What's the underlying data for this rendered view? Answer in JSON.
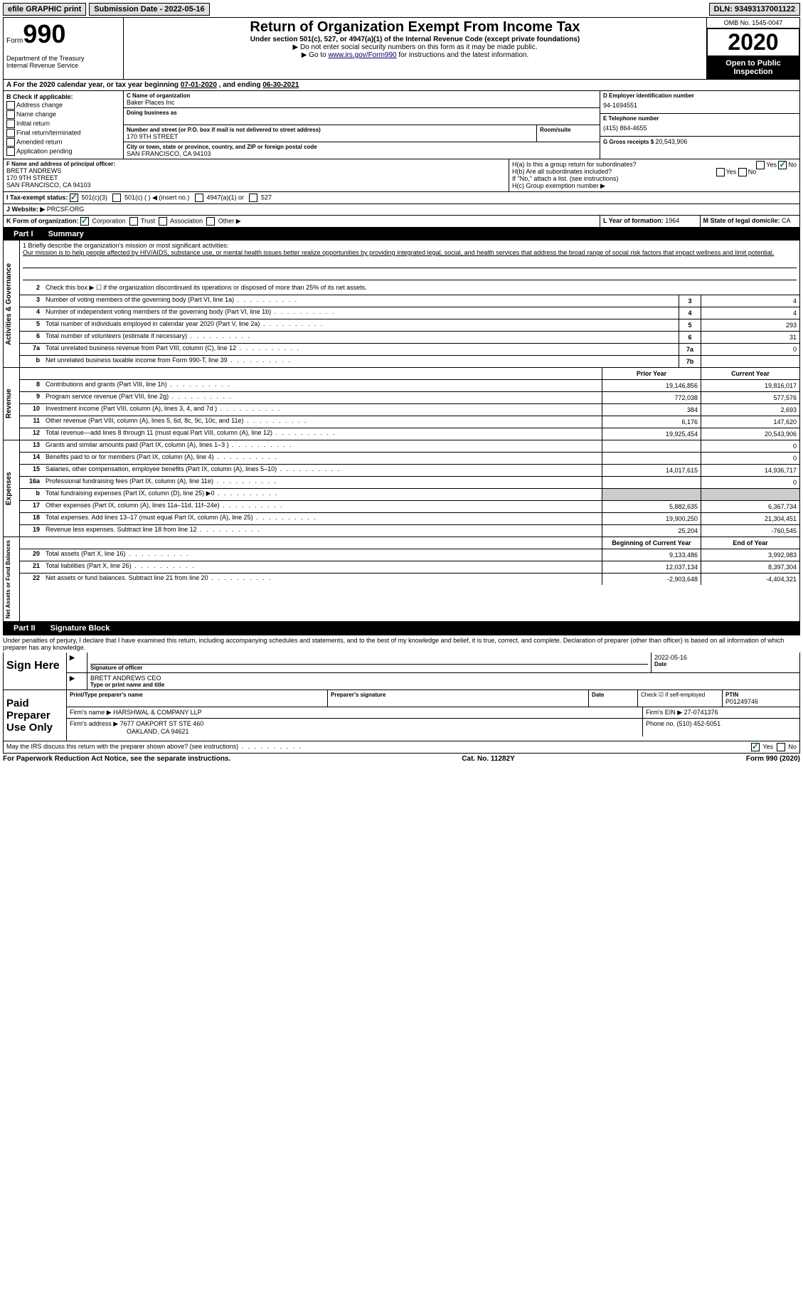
{
  "topbar": {
    "efile": "efile GRAPHIC print",
    "submission_label": "Submission Date - ",
    "submission_date": "2022-05-16",
    "dln_label": "DLN: ",
    "dln": "93493137001122"
  },
  "header": {
    "form_word": "Form",
    "form_number": "990",
    "dept": "Department of the Treasury\nInternal Revenue Service",
    "title": "Return of Organization Exempt From Income Tax",
    "subtitle": "Under section 501(c), 527, or 4947(a)(1) of the Internal Revenue Code (except private foundations)",
    "note1": "▶ Do not enter social security numbers on this form as it may be made public.",
    "note2_pre": "▶ Go to ",
    "note2_link": "www.irs.gov/Form990",
    "note2_post": " for instructions and the latest information.",
    "omb": "OMB No. 1545-0047",
    "year": "2020",
    "inspect": "Open to Public Inspection"
  },
  "section_a": {
    "text_pre": "A For the 2020 calendar year, or tax year beginning ",
    "begin": "07-01-2020",
    "mid": " , and ending ",
    "end": "06-30-2021"
  },
  "block_b": {
    "label": "B Check if applicable:",
    "items": [
      "Address change",
      "Name change",
      "Initial return",
      "Final return/terminated",
      "Amended return",
      "Application pending"
    ]
  },
  "block_c": {
    "name_label": "C Name of organization",
    "name": "Baker Places Inc",
    "dba_label": "Doing business as",
    "addr_label": "Number and street (or P.O. box if mail is not delivered to street address)",
    "room_label": "Room/suite",
    "addr": "170 9TH STREET",
    "city_label": "City or town, state or province, country, and ZIP or foreign postal code",
    "city": "SAN FRANCISCO, CA  94103"
  },
  "block_d": {
    "ein_label": "D Employer identification number",
    "ein": "94-1694551",
    "tel_label": "E Telephone number",
    "tel": "(415) 864-4655",
    "gross_label": "G Gross receipts $ ",
    "gross": "20,543,906"
  },
  "block_f": {
    "label": "F Name and address of principal officer:",
    "name": "BRETT ANDREWS",
    "addr1": "170 9TH STREET",
    "addr2": "SAN FRANCISCO, CA  94103"
  },
  "block_h": {
    "ha": "H(a)  Is this a group return for subordinates?",
    "hb": "H(b)  Are all subordinates included?",
    "hb_note": "If \"No,\" attach a list. (see instructions)",
    "hc": "H(c)  Group exemption number ▶",
    "yes": "Yes",
    "no": "No"
  },
  "row_i": {
    "label": "I   Tax-exempt status:",
    "opts": [
      "501(c)(3)",
      "501(c) (  ) ◀ (insert no.)",
      "4947(a)(1) or",
      "527"
    ]
  },
  "row_j": {
    "label": "J   Website: ▶ ",
    "val": "PRCSF.ORG"
  },
  "row_k": {
    "label": "K Form of organization:",
    "opts": [
      "Corporation",
      "Trust",
      "Association",
      "Other ▶"
    ]
  },
  "row_lm": {
    "l_label": "L Year of formation: ",
    "l_val": "1964",
    "m_label": "M State of legal domicile: ",
    "m_val": "CA"
  },
  "part1": {
    "label": "Part I",
    "title": "Summary",
    "q1": "1 Briefly describe the organization's mission or most significant activities:",
    "mission": "Our mission is to help people affected by HIV/AIDS, substance use, or mental health issues better realize opportunities by providing integrated legal, social, and health services that address the broad range of social risk factors that impact wellness and limit potential.",
    "q2": "Check this box ▶ ☐  if the organization discontinued its operations or disposed of more than 25% of its net assets.",
    "prior_year": "Prior Year",
    "current_year": "Current Year",
    "begin_year": "Beginning of Current Year",
    "end_year": "End of Year"
  },
  "lines_gov": [
    {
      "n": "3",
      "t": "Number of voting members of the governing body (Part VI, line 1a)",
      "box": "3",
      "v": "4"
    },
    {
      "n": "4",
      "t": "Number of independent voting members of the governing body (Part VI, line 1b)",
      "box": "4",
      "v": "4"
    },
    {
      "n": "5",
      "t": "Total number of individuals employed in calendar year 2020 (Part V, line 2a)",
      "box": "5",
      "v": "293"
    },
    {
      "n": "6",
      "t": "Total number of volunteers (estimate if necessary)",
      "box": "6",
      "v": "31"
    },
    {
      "n": "7a",
      "t": "Total unrelated business revenue from Part VIII, column (C), line 12",
      "box": "7a",
      "v": "0"
    },
    {
      "n": "b",
      "t": "Net unrelated business taxable income from Form 990-T, line 39",
      "box": "7b",
      "v": ""
    }
  ],
  "lines_rev": [
    {
      "n": "8",
      "t": "Contributions and grants (Part VIII, line 1h)",
      "py": "19,146,856",
      "cy": "19,816,017"
    },
    {
      "n": "9",
      "t": "Program service revenue (Part VIII, line 2g)",
      "py": "772,038",
      "cy": "577,576"
    },
    {
      "n": "10",
      "t": "Investment income (Part VIII, column (A), lines 3, 4, and 7d )",
      "py": "384",
      "cy": "2,693"
    },
    {
      "n": "11",
      "t": "Other revenue (Part VIII, column (A), lines 5, 6d, 8c, 9c, 10c, and 11e)",
      "py": "6,176",
      "cy": "147,620"
    },
    {
      "n": "12",
      "t": "Total revenue—add lines 8 through 11 (must equal Part VIII, column (A), line 12)",
      "py": "19,925,454",
      "cy": "20,543,906"
    }
  ],
  "lines_exp": [
    {
      "n": "13",
      "t": "Grants and similar amounts paid (Part IX, column (A), lines 1–3 )",
      "py": "",
      "cy": "0"
    },
    {
      "n": "14",
      "t": "Benefits paid to or for members (Part IX, column (A), line 4)",
      "py": "",
      "cy": "0"
    },
    {
      "n": "15",
      "t": "Salaries, other compensation, employee benefits (Part IX, column (A), lines 5–10)",
      "py": "14,017,615",
      "cy": "14,936,717"
    },
    {
      "n": "16a",
      "t": "Professional fundraising fees (Part IX, column (A), line 11e)",
      "py": "",
      "cy": "0"
    },
    {
      "n": "b",
      "t": "Total fundraising expenses (Part IX, column (D), line 25) ▶0",
      "py": "SHADE",
      "cy": "SHADE"
    },
    {
      "n": "17",
      "t": "Other expenses (Part IX, column (A), lines 11a–11d, 11f–24e)",
      "py": "5,882,635",
      "cy": "6,367,734"
    },
    {
      "n": "18",
      "t": "Total expenses. Add lines 13–17 (must equal Part IX, column (A), line 25)",
      "py": "19,900,250",
      "cy": "21,304,451"
    },
    {
      "n": "19",
      "t": "Revenue less expenses. Subtract line 18 from line 12",
      "py": "25,204",
      "cy": "-760,545"
    }
  ],
  "lines_net": [
    {
      "n": "20",
      "t": "Total assets (Part X, line 16)",
      "py": "9,133,486",
      "cy": "3,992,983"
    },
    {
      "n": "21",
      "t": "Total liabilities (Part X, line 26)",
      "py": "12,037,134",
      "cy": "8,397,304"
    },
    {
      "n": "22",
      "t": "Net assets or fund balances. Subtract line 21 from line 20",
      "py": "-2,903,648",
      "cy": "-4,404,321"
    }
  ],
  "part2": {
    "label": "Part II",
    "title": "Signature Block",
    "perjury": "Under penalties of perjury, I declare that I have examined this return, including accompanying schedules and statements, and to the best of my knowledge and belief, it is true, correct, and complete. Declaration of preparer (other than officer) is based on all information of which preparer has any knowledge."
  },
  "sign": {
    "label": "Sign Here",
    "sig_officer": "Signature of officer",
    "date_label": "Date",
    "date": "2022-05-16",
    "name_title": "BRETT ANDREWS CEO",
    "type_label": "Type or print name and title"
  },
  "preparer": {
    "label": "Paid Preparer Use Only",
    "print_name_label": "Print/Type preparer's name",
    "sig_label": "Preparer's signature",
    "date_label": "Date",
    "check_label": "Check ☑ if self-employed",
    "ptin_label": "PTIN",
    "ptin": "P01249746",
    "firm_name_label": "Firm's name   ▶ ",
    "firm_name": "HARSHWAL & COMPANY LLP",
    "firm_ein_label": "Firm's EIN ▶ ",
    "firm_ein": "27-0741376",
    "firm_addr_label": "Firm's address ▶ ",
    "firm_addr": "7677 OAKPORT ST STE 460",
    "firm_city": "OAKLAND, CA  94621",
    "phone_label": "Phone no. ",
    "phone": "(510) 452-5051",
    "discuss": "May the IRS discuss this return with the preparer shown above? (see instructions)"
  },
  "footer": {
    "left": "For Paperwork Reduction Act Notice, see the separate instructions.",
    "mid": "Cat. No. 11282Y",
    "right": "Form 990 (2020)"
  },
  "vert_labels": {
    "gov": "Activities & Governance",
    "rev": "Revenue",
    "exp": "Expenses",
    "net": "Net Assets or Fund Balances"
  }
}
